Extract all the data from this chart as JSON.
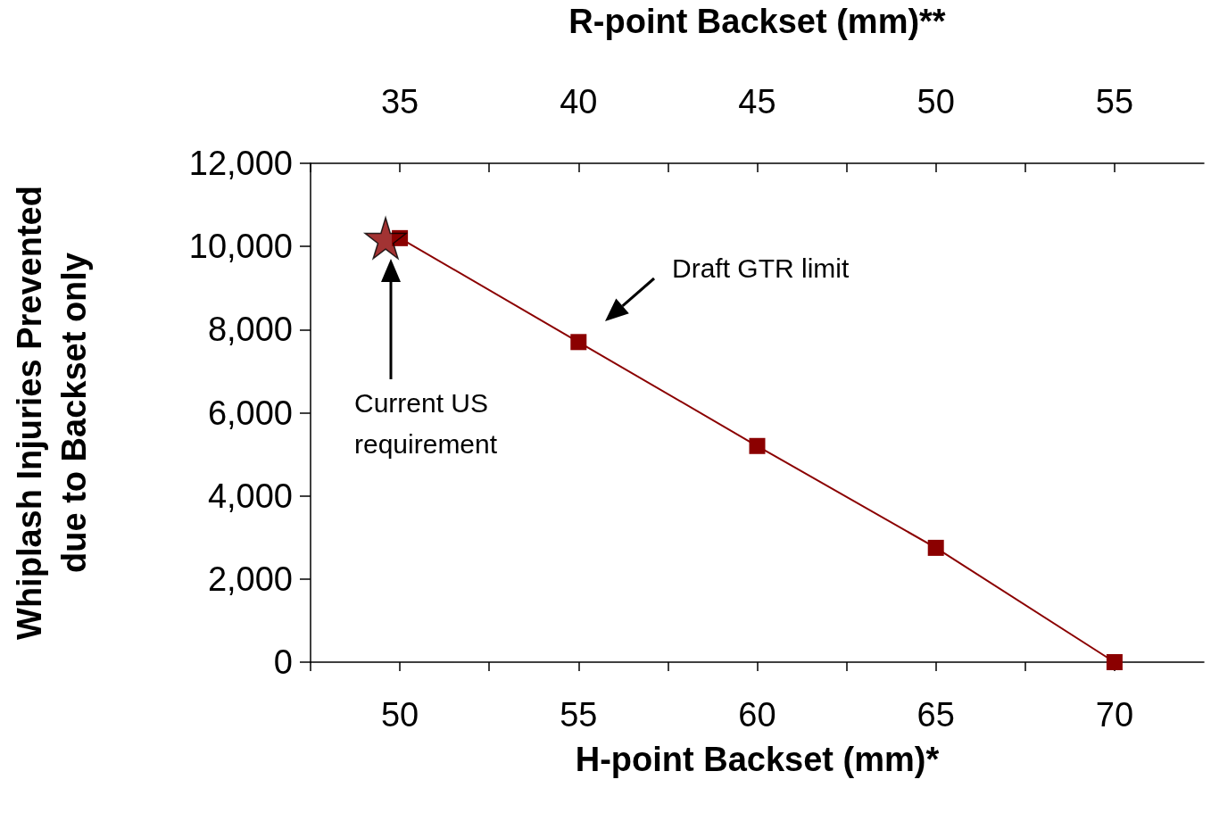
{
  "chart_data": {
    "type": "line",
    "xlabel": "H-point Backset (mm)*",
    "x2label": "R-point Backset (mm)**",
    "ylabel": "Whiplash Injuries Prevented\ndue to Backset only",
    "xlim": [
      47.5,
      72.5
    ],
    "xticks": [
      {
        "value": 47.5,
        "label": null
      },
      50,
      {
        "value": 52.5,
        "label": null
      },
      55,
      {
        "value": 57.5,
        "label": null
      },
      60,
      {
        "value": 62.5,
        "label": null
      },
      65,
      {
        "value": 67.5,
        "label": null
      },
      70
    ],
    "x2lim": [
      32.5,
      57.5
    ],
    "x2ticks": [
      {
        "value": 32.5,
        "label": null
      },
      35,
      {
        "value": 37.5,
        "label": null
      },
      40,
      {
        "value": 42.5,
        "label": null
      },
      45,
      {
        "value": 47.5,
        "label": null
      },
      50,
      {
        "value": 52.5,
        "label": null
      },
      55
    ],
    "ylim": [
      0,
      12000
    ],
    "yticks": [
      0,
      {
        "value": 2000,
        "label": "2,000"
      },
      {
        "value": 4000,
        "label": "4,000"
      },
      {
        "value": 6000,
        "label": "6,000"
      },
      {
        "value": 8000,
        "label": "8,000"
      },
      {
        "value": 10000,
        "label": "10,000"
      },
      {
        "value": 12000,
        "label": "12,000"
      }
    ],
    "grid": false,
    "line_style": "solid",
    "series": [
      {
        "color": "#8b0000",
        "marker": "square",
        "x": [
          50,
          55,
          60,
          65,
          70
        ],
        "values": [
          10200,
          7700,
          5200,
          2750,
          0
        ]
      },
      {
        "type": "scatter",
        "color": "#8b0000",
        "marker": "star",
        "x": [
          49.6
        ],
        "values": [
          10200
        ]
      }
    ],
    "annotations": [
      "Draft GTR limit",
      "Current US\nrequirement"
    ]
  }
}
